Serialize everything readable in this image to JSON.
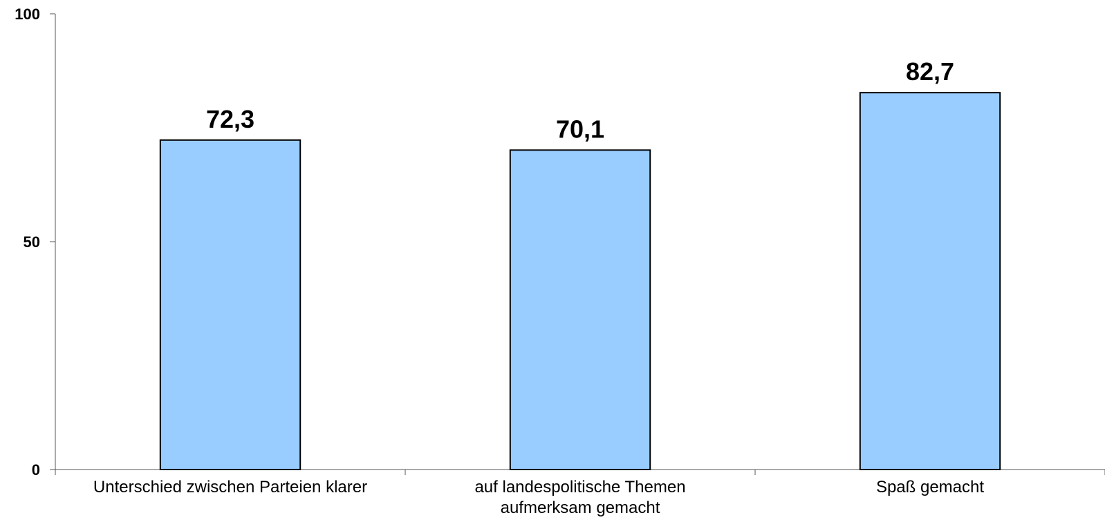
{
  "chart_data": {
    "type": "bar",
    "categories": [
      [
        "Unterschied zwischen Parteien klarer"
      ],
      [
        "auf landespolitische Themen",
        "aufmerksam gemacht"
      ],
      [
        "Spaß gemacht"
      ]
    ],
    "values": [
      72.3,
      70.1,
      82.7
    ],
    "data_labels": [
      "72,3",
      "70,1",
      "82,7"
    ],
    "ylim": [
      0,
      100
    ],
    "yticks": [
      0,
      50,
      100
    ],
    "ytick_labels": [
      "0",
      "50",
      "100"
    ],
    "title": "",
    "xlabel": "",
    "ylabel": "",
    "grid": false,
    "legend": "none",
    "colors": {
      "bar_fill": "#99ccff",
      "bar_stroke": "#000000",
      "axis": "#555555"
    }
  }
}
